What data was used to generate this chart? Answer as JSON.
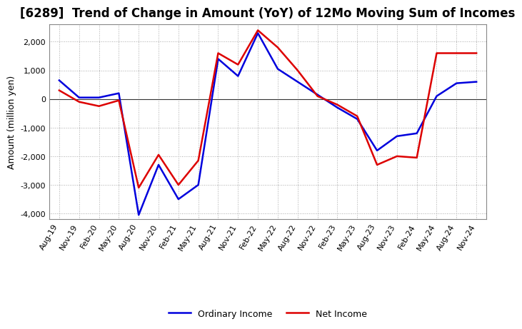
{
  "title": "[6289]  Trend of Change in Amount (YoY) of 12Mo Moving Sum of Incomes",
  "ylabel": "Amount (million yen)",
  "ylim": [
    -4200,
    2600
  ],
  "yticks": [
    -4000,
    -3000,
    -2000,
    -1000,
    0,
    1000,
    2000
  ],
  "background_color": "#ffffff",
  "plot_bg_color": "#ffffff",
  "ordinary_income_color": "#0000dd",
  "net_income_color": "#dd0000",
  "x_labels": [
    "Aug-19",
    "Nov-19",
    "Feb-20",
    "May-20",
    "Aug-20",
    "Nov-20",
    "Feb-21",
    "May-21",
    "Aug-21",
    "Nov-21",
    "Feb-22",
    "May-22",
    "Aug-22",
    "Nov-22",
    "Feb-23",
    "May-23",
    "Aug-23",
    "Nov-23",
    "Feb-24",
    "May-24",
    "Aug-24",
    "Nov-24"
  ],
  "ordinary_income": [
    650,
    50,
    50,
    200,
    -4050,
    -2300,
    -3500,
    -3000,
    1400,
    800,
    2300,
    1050,
    600,
    150,
    -300,
    -700,
    -1800,
    -1300,
    -1200,
    100,
    550,
    600
  ],
  "net_income": [
    300,
    -100,
    -250,
    -50,
    -3100,
    -1950,
    -3000,
    -2150,
    1600,
    1200,
    2400,
    1800,
    1000,
    100,
    -200,
    -600,
    -2300,
    -2000,
    -2050,
    1600,
    1600,
    1600
  ],
  "line_width": 1.8,
  "title_fontsize": 12,
  "axis_label_fontsize": 9,
  "tick_fontsize": 8,
  "legend_fontsize": 9
}
